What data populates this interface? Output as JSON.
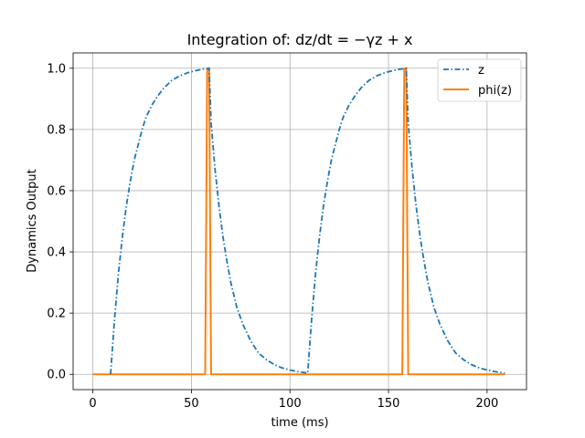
{
  "chart_data": {
    "type": "line",
    "title": "Integration of:  dz/dt = −γz + x",
    "xlabel": "time (ms)",
    "ylabel": "Dynamics Output",
    "xlim": [
      -10,
      220
    ],
    "ylim": [
      -0.05,
      1.05
    ],
    "xticks": [
      0,
      50,
      100,
      150,
      200
    ],
    "xtick_labels": [
      "0",
      "50",
      "100",
      "150",
      "200"
    ],
    "yticks": [
      0.0,
      0.2,
      0.4,
      0.6,
      0.8,
      1.0
    ],
    "ytick_labels": [
      "0.0",
      "0.2",
      "0.4",
      "0.6",
      "0.8",
      "1.0"
    ],
    "grid": true,
    "legend_position": "top-right",
    "series": [
      {
        "name": "z",
        "color": "#1f77b4",
        "style": "dash-dot",
        "x": [
          9,
          11,
          13,
          15,
          17,
          19,
          21,
          23,
          25,
          27,
          30,
          33,
          36,
          40,
          44,
          48,
          52,
          56,
          58,
          59,
          60,
          62,
          64,
          66,
          68,
          70,
          73,
          76,
          80,
          84,
          88,
          92,
          96,
          100,
          104,
          108,
          109,
          111,
          113,
          115,
          117,
          119,
          121,
          123,
          125,
          127,
          130,
          133,
          136,
          140,
          144,
          148,
          152,
          156,
          158,
          159,
          160,
          162,
          164,
          166,
          168,
          170,
          173,
          176,
          180,
          184,
          188,
          192,
          196,
          200,
          204,
          208,
          209
        ],
        "y": [
          0.0,
          0.18,
          0.33,
          0.45,
          0.55,
          0.63,
          0.7,
          0.75,
          0.8,
          0.84,
          0.88,
          0.91,
          0.935,
          0.96,
          0.975,
          0.985,
          0.992,
          0.997,
          0.998,
          1.0,
          0.82,
          0.67,
          0.55,
          0.45,
          0.37,
          0.3,
          0.22,
          0.165,
          0.11,
          0.07,
          0.048,
          0.032,
          0.021,
          0.014,
          0.009,
          0.005,
          0.004,
          0.18,
          0.33,
          0.45,
          0.55,
          0.63,
          0.7,
          0.75,
          0.8,
          0.84,
          0.88,
          0.91,
          0.935,
          0.96,
          0.975,
          0.985,
          0.992,
          0.997,
          0.998,
          1.0,
          0.82,
          0.67,
          0.55,
          0.45,
          0.37,
          0.3,
          0.22,
          0.165,
          0.11,
          0.07,
          0.048,
          0.032,
          0.021,
          0.014,
          0.009,
          0.005,
          0.004
        ]
      },
      {
        "name": "phi(z)",
        "color": "#ff7f0e",
        "style": "solid",
        "x": [
          0,
          57,
          58,
          59,
          60,
          157,
          158,
          159,
          160,
          209
        ],
        "y": [
          0,
          0,
          1,
          1,
          0,
          0,
          1,
          1,
          0,
          0
        ]
      }
    ]
  }
}
